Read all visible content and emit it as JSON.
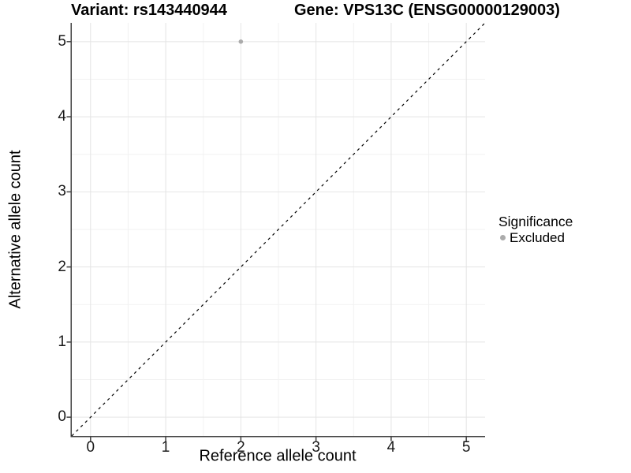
{
  "header": {
    "variant_title": "Variant: rs143440944",
    "gene_title": "Gene: VPS13C (ENSG00000129003)"
  },
  "legend": {
    "title": "Significance",
    "items": [
      {
        "label": "Excluded",
        "color": "#ababab"
      }
    ]
  },
  "chart_data": {
    "type": "scatter",
    "title": "Variant: rs143440944 — Gene: VPS13C (ENSG00000129003)",
    "xlabel": "Reference allele count",
    "ylabel": "Alternative allele count",
    "xlim": [
      -0.25,
      5.25
    ],
    "ylim": [
      -0.25,
      5.25
    ],
    "xticks": [
      0,
      1,
      2,
      3,
      4,
      5
    ],
    "yticks": [
      0,
      1,
      2,
      3,
      4,
      5
    ],
    "minor_gridlines": [
      0.5,
      1.5,
      2.5,
      3.5,
      4.5
    ],
    "grid": "major+minor",
    "legend_position": "right",
    "series": [
      {
        "name": "Excluded",
        "marker": "circle",
        "color": "#ababab",
        "points": [
          [
            2,
            5
          ]
        ]
      }
    ],
    "reference_line": {
      "kind": "identity y=x",
      "style": "dashed",
      "color": "#000000",
      "from": [
        -0.25,
        -0.25
      ],
      "to": [
        5.25,
        5.25
      ]
    },
    "style": {
      "grid_major_color": "#e4e4e4",
      "grid_minor_color": "#f2f2f2",
      "axis_line_color": "#404040",
      "tick_color": "#404040",
      "point_radius_px": 2.8,
      "legend_dot_radius_px": 3.5
    }
  }
}
